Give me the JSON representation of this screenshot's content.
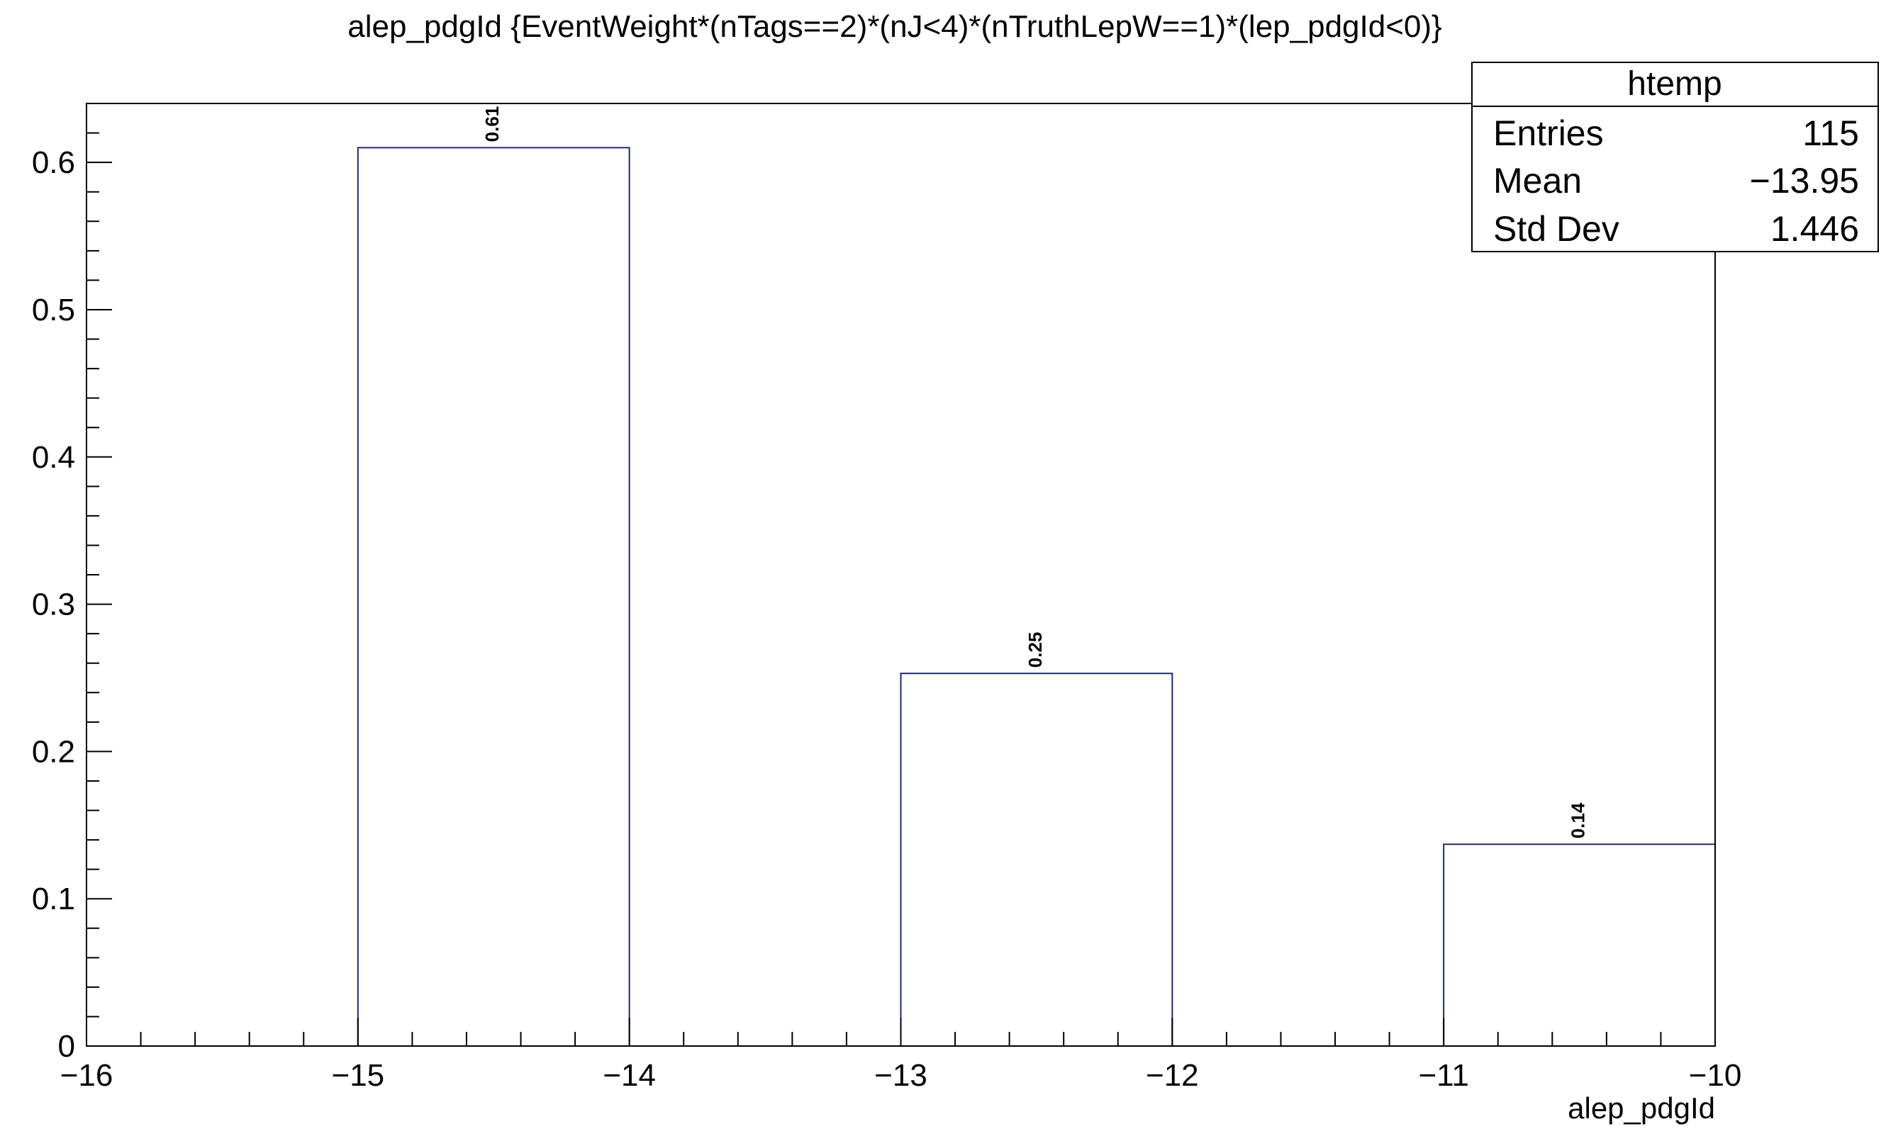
{
  "chart_data": {
    "type": "bar",
    "title": "alep_pdgId {EventWeight*(nTags==2)*(nJ<4)*(nTruthLepW==1)*(lep_pdgId<0)}",
    "xlabel": "alep_pdgId",
    "ylabel": "",
    "xlim": [
      -16,
      -10
    ],
    "ylim": [
      0,
      0.64
    ],
    "x_ticks": [
      -16,
      -15,
      -14,
      -13,
      -12,
      -11,
      -10
    ],
    "y_ticks": [
      0,
      0.1,
      0.2,
      0.3,
      0.4,
      0.5,
      0.6
    ],
    "bins": [
      {
        "x0": -15,
        "x1": -14,
        "value": 0.61,
        "label": "0.61"
      },
      {
        "x0": -13,
        "x1": -12,
        "value": 0.253,
        "label": "0.25"
      },
      {
        "x0": -11,
        "x1": -10,
        "value": 0.137,
        "label": "0.14"
      }
    ],
    "bar_color": "#1f2a6e",
    "grid": false,
    "legend": "none",
    "stats_box": {
      "position": "top-right",
      "title": "htemp",
      "rows": [
        {
          "label": "Entries",
          "value": "115"
        },
        {
          "label": "Mean",
          "value": "−13.95"
        },
        {
          "label": "Std Dev",
          "value": "1.446"
        }
      ]
    }
  }
}
